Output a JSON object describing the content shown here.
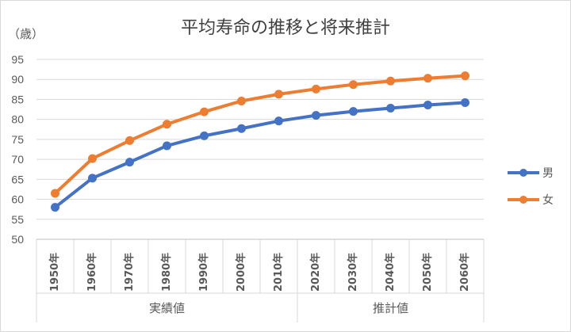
{
  "chart_data": {
    "type": "line",
    "title": "平均寿命の推移と将来推計",
    "ylabel": "（歳）",
    "ylim": [
      50,
      95
    ],
    "yticks": [
      50,
      55,
      60,
      65,
      70,
      75,
      80,
      85,
      90,
      95
    ],
    "grid": true,
    "legend_position": "right",
    "categories": [
      "1950年",
      "1960年",
      "1970年",
      "1980年",
      "1990年",
      "2000年",
      "2010年",
      "2020年",
      "2030年",
      "2040年",
      "2050年",
      "2060年"
    ],
    "category_groups": [
      {
        "label": "実績値",
        "count": 7
      },
      {
        "label": "推計値",
        "count": 5
      }
    ],
    "series": [
      {
        "name": "男",
        "color": "#4472c4",
        "values": [
          58.0,
          65.3,
          69.3,
          73.4,
          75.9,
          77.7,
          79.6,
          81.0,
          82.0,
          82.8,
          83.6,
          84.2
        ]
      },
      {
        "name": "女",
        "color": "#ed7d31",
        "values": [
          61.5,
          70.2,
          74.7,
          78.8,
          81.9,
          84.6,
          86.3,
          87.6,
          88.7,
          89.6,
          90.3,
          90.9
        ]
      }
    ]
  }
}
